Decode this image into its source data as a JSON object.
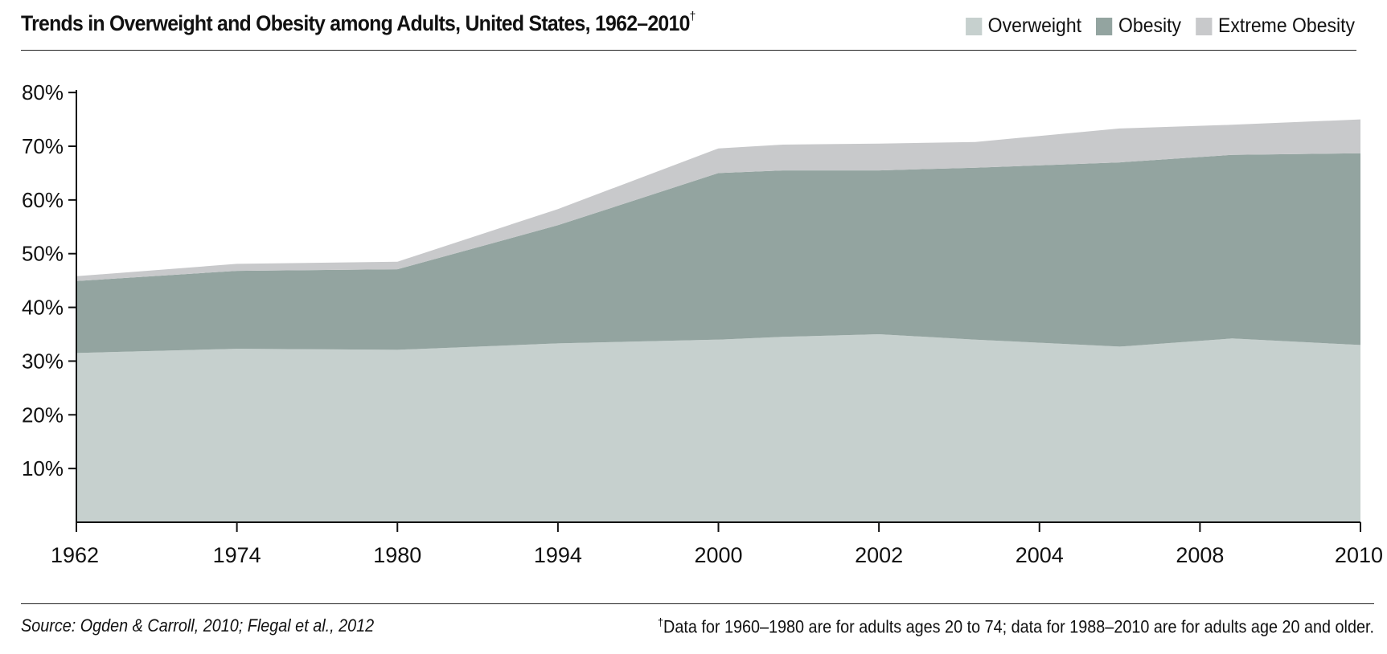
{
  "header": {
    "title": "Trends in Overweight and Obesity among Adults, United States, 1962–2010",
    "title_mark": "†"
  },
  "legend": [
    {
      "label": "Overweight",
      "color": "#c6d0ce"
    },
    {
      "label": "Obesity",
      "color": "#93a4a0"
    },
    {
      "label": "Extreme Obesity",
      "color": "#c8c9cb"
    }
  ],
  "footer": {
    "source": "Source: Ogden & Carroll, 2010; Flegal et al., 2012",
    "note_mark": "†",
    "note": "Data for 1960–1980 are for adults ages 20 to 74; data for 1988–2010 are for adults age 20 and older."
  },
  "chart_data": {
    "type": "area",
    "stacked": true,
    "x": [
      "1962",
      "1974",
      "1980",
      "1994",
      "2000",
      "2002",
      "2004",
      "2008",
      "2010"
    ],
    "ylim": [
      0,
      80
    ],
    "yticks": [
      10,
      20,
      30,
      40,
      50,
      60,
      70,
      80
    ],
    "ytick_labels": [
      "10%",
      "20%",
      "30%",
      "40%",
      "50%",
      "60%",
      "70%",
      "80%"
    ],
    "series": [
      {
        "name": "Overweight",
        "color": "#c6d0ce",
        "x": [
          0,
          1,
          2,
          3,
          4,
          4.4,
          5,
          5.6,
          6.5,
          7.2,
          8
        ],
        "values": [
          31.5,
          32.3,
          32.1,
          33.3,
          34.0,
          34.5,
          35.0,
          34.0,
          32.7,
          34.2,
          33.0
        ]
      },
      {
        "name": "Obesity",
        "color": "#93a4a0",
        "x": [
          0,
          1,
          2,
          3,
          4,
          4.4,
          5,
          5.6,
          6.5,
          7.2,
          8
        ],
        "values": [
          13.4,
          14.5,
          15.0,
          22.0,
          31.0,
          31.0,
          30.5,
          32.0,
          34.3,
          34.2,
          35.7
        ]
      },
      {
        "name": "Extreme Obesity",
        "color": "#c8c9cb",
        "x": [
          0,
          1,
          2,
          3,
          4,
          4.4,
          5,
          5.6,
          6.5,
          7.2,
          8
        ],
        "values": [
          0.9,
          1.3,
          1.4,
          3.0,
          4.6,
          4.8,
          5.0,
          4.8,
          6.3,
          5.6,
          6.3
        ]
      }
    ]
  }
}
